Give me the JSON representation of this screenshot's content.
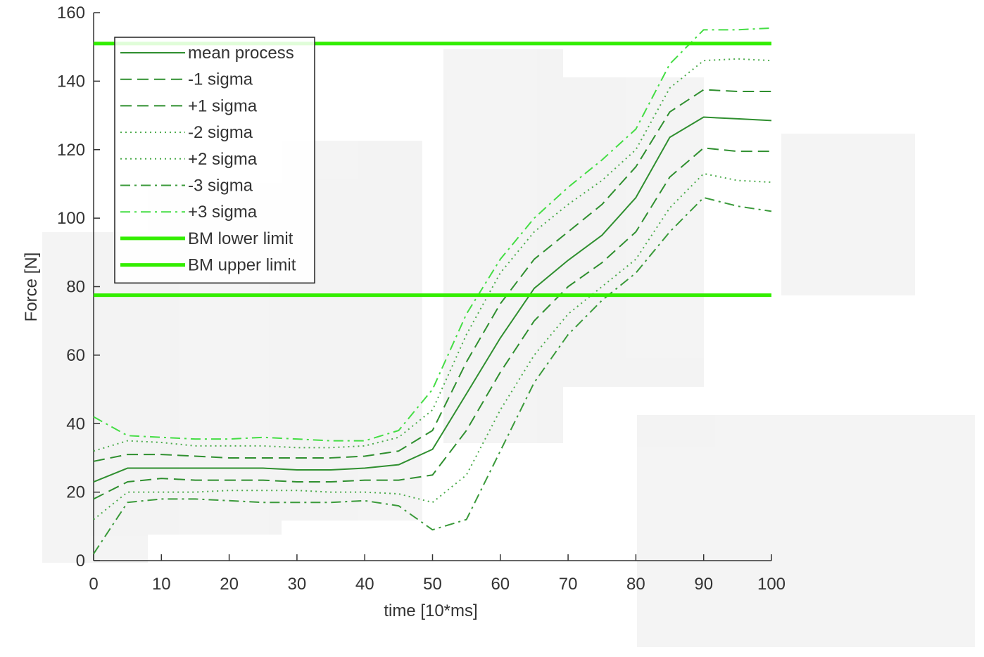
{
  "chart_data": {
    "type": "line",
    "x_label": "time [10*ms]",
    "y_label": "Force [N]",
    "x": [
      0,
      5,
      10,
      15,
      20,
      25,
      30,
      35,
      40,
      45,
      50,
      55,
      60,
      65,
      70,
      75,
      80,
      85,
      90,
      95,
      100
    ],
    "series": [
      {
        "name": "mean process",
        "color": "#2f8f2f",
        "linestyle": "solid",
        "width": 2,
        "values": [
          23,
          27,
          27,
          27,
          27,
          27,
          26.5,
          26.5,
          27,
          28,
          32.5,
          48.7,
          65,
          79.5,
          87.7,
          95,
          106,
          123.6,
          129.5,
          129,
          128.5
        ]
      },
      {
        "name": "-1 sigma",
        "color": "#2f8f2f",
        "linestyle": "dashed",
        "width": 2,
        "values": [
          18,
          23,
          24,
          23.5,
          23.5,
          23.5,
          23,
          23,
          23.5,
          23.5,
          25,
          38,
          55,
          70,
          80,
          87,
          96,
          112,
          120.5,
          119.5,
          119.5
        ]
      },
      {
        "name": "+1 sigma",
        "color": "#2f8f2f",
        "linestyle": "dashed",
        "width": 2,
        "values": [
          29,
          31,
          31,
          30.5,
          30,
          30,
          30,
          30,
          30.5,
          32,
          38,
          58,
          75,
          88,
          96,
          104,
          115,
          131,
          137.5,
          137,
          137
        ]
      },
      {
        "name": "-2 sigma",
        "color": "#4cab4c",
        "linestyle": "dotted",
        "width": 2,
        "values": [
          12,
          20,
          20,
          20,
          20.5,
          20.5,
          20.5,
          20,
          20,
          19.5,
          17,
          25,
          44,
          60,
          72,
          80,
          88,
          103,
          113,
          111,
          110.5
        ]
      },
      {
        "name": "+2 sigma",
        "color": "#4cab4c",
        "linestyle": "dotted",
        "width": 2,
        "values": [
          32,
          35,
          34.5,
          33.5,
          33.5,
          33.5,
          33,
          33,
          33.5,
          36,
          44,
          66,
          84,
          96,
          104,
          111,
          120,
          138,
          146,
          146.5,
          146
        ]
      },
      {
        "name": "-3 sigma",
        "color": "#3a9a3a",
        "linestyle": "dashdot",
        "width": 2,
        "values": [
          2,
          17,
          18,
          18,
          17.5,
          17,
          17,
          17,
          17.5,
          16,
          9,
          12,
          32,
          52,
          66,
          76,
          84,
          96,
          106,
          103.5,
          102
        ]
      },
      {
        "name": "+3 sigma",
        "color": "#44dd44",
        "linestyle": "dashdot",
        "width": 2,
        "values": [
          42,
          36.5,
          36,
          35.5,
          35.5,
          36,
          35.5,
          35,
          35,
          38,
          50,
          72,
          88,
          100,
          109,
          117,
          126,
          145,
          155,
          155,
          155.5
        ]
      },
      {
        "name": "BM lower limit",
        "color": "#33ee00",
        "linestyle": "solid",
        "width": 5,
        "values": [
          77.5,
          77.5,
          77.5,
          77.5,
          77.5,
          77.5,
          77.5,
          77.5,
          77.5,
          77.5,
          77.5,
          77.5,
          77.5,
          77.5,
          77.5,
          77.5,
          77.5,
          77.5,
          77.5,
          77.5,
          77.5
        ]
      },
      {
        "name": "BM upper limit",
        "color": "#33ee00",
        "linestyle": "solid",
        "width": 5,
        "values": [
          151,
          151,
          151,
          151,
          151,
          151,
          151,
          151,
          151,
          151,
          151,
          151,
          151,
          151,
          151,
          151,
          151,
          151,
          151,
          151,
          151
        ]
      }
    ],
    "xlim": [
      0,
      100
    ],
    "xticks": [
      0,
      10,
      20,
      30,
      40,
      50,
      60,
      70,
      80,
      90,
      100
    ],
    "ylim": [
      0,
      160
    ],
    "yticks": [
      0,
      20,
      40,
      60,
      80,
      100,
      120,
      140,
      160
    ],
    "legend": "upper-left"
  }
}
